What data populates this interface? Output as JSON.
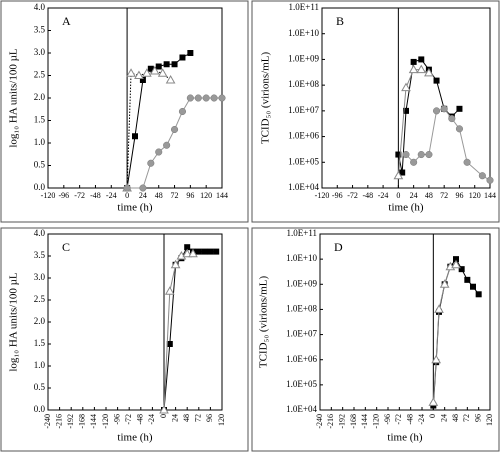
{
  "chart_data": [
    {
      "type": "line",
      "annotation": "A",
      "xlabel": "time (h)",
      "ylabel": "log₁₀ HA units/100 µL",
      "xlim": [
        -120,
        144
      ],
      "xticks": [
        -120,
        -96,
        -72,
        -48,
        -24,
        0,
        24,
        48,
        72,
        96,
        120,
        144
      ],
      "ylim": [
        0,
        4
      ],
      "yticks": [
        {
          "value": 0,
          "label": "0.0"
        },
        {
          "value": 0.5,
          "label": "0.5"
        },
        {
          "value": 1,
          "label": "1.0"
        },
        {
          "value": 1.5,
          "label": "1.5"
        },
        {
          "value": 2,
          "label": "2.0"
        },
        {
          "value": 2.5,
          "label": "2.5"
        },
        {
          "value": 3,
          "label": "3.0"
        },
        {
          "value": 3.5,
          "label": "3.5"
        },
        {
          "value": 4,
          "label": "4.0"
        }
      ],
      "series": [
        {
          "marker": "square",
          "color": "#000000",
          "x": [
            0,
            12,
            24,
            36,
            48,
            60,
            72,
            84,
            96
          ],
          "values": [
            0,
            1.15,
            2.4,
            2.65,
            2.7,
            2.75,
            2.75,
            2.9,
            3.0
          ]
        },
        {
          "marker": "triangle",
          "color": "#888888",
          "linestyle": "dotted",
          "x": [
            0,
            6,
            18,
            30,
            42,
            54,
            66
          ],
          "values": [
            0,
            2.55,
            2.5,
            2.55,
            2.6,
            2.55,
            2.4
          ]
        },
        {
          "marker": "circle",
          "color": "#999999",
          "x": [
            0,
            24,
            36,
            48,
            60,
            72,
            84,
            96,
            108,
            120,
            132,
            144
          ],
          "values": [
            0,
            0,
            0.55,
            0.8,
            0.95,
            1.3,
            1.7,
            2.0,
            2.0,
            2.0,
            2.0,
            2.0
          ]
        }
      ]
    },
    {
      "type": "line",
      "annotation": "B",
      "xlabel": "time (h)",
      "ylabel": "TCID₅₀ (virions/mL)",
      "yscale": "log",
      "xlim": [
        -120,
        144
      ],
      "xticks": [
        -120,
        -96,
        -72,
        -48,
        -24,
        0,
        24,
        48,
        72,
        96,
        120,
        144
      ],
      "ylim": [
        10000,
        100000000000
      ],
      "yticks": [
        {
          "value": 10000,
          "label": "1.0E+04"
        },
        {
          "value": 100000,
          "label": "1.0E+05"
        },
        {
          "value": 1000000,
          "label": "1.0E+06"
        },
        {
          "value": 10000000,
          "label": "1.0E+07"
        },
        {
          "value": 100000000,
          "label": "1.0E+08"
        },
        {
          "value": 1000000000,
          "label": "1.0E+09"
        },
        {
          "value": 10000000000,
          "label": "1.0E+10"
        },
        {
          "value": 100000000000,
          "label": "1.0E+11"
        }
      ],
      "series": [
        {
          "marker": "square",
          "color": "#000000",
          "x": [
            0,
            6,
            12,
            24,
            36,
            48,
            60,
            72,
            84,
            96
          ],
          "values": [
            200000,
            40000,
            10000000,
            800000000,
            1000000000,
            400000000,
            150000000,
            12000000,
            6000000,
            12000000
          ]
        },
        {
          "marker": "triangle",
          "color": "#888888",
          "x": [
            0,
            12,
            24,
            36,
            48
          ],
          "values": [
            30000,
            80000000,
            400000000,
            400000000,
            300000000
          ]
        },
        {
          "marker": "circle",
          "color": "#999999",
          "x": [
            12,
            24,
            36,
            48,
            60,
            72,
            84,
            96,
            108,
            132,
            144
          ],
          "values": [
            200000,
            100000,
            200000,
            200000,
            10000000,
            12000000,
            5000000,
            2000000,
            100000,
            30000,
            20000
          ]
        }
      ]
    },
    {
      "type": "line",
      "annotation": "C",
      "xlabel": "time (h)",
      "ylabel": "log₁₀ HA units/100 µL",
      "xlim": [
        -240,
        120
      ],
      "xticks": [
        -240,
        -216,
        -192,
        -168,
        -144,
        -120,
        -96,
        -72,
        -48,
        -24,
        0,
        24,
        48,
        72,
        96,
        120
      ],
      "ylim": [
        0,
        4
      ],
      "yticks": [
        {
          "value": 0,
          "label": "0.0"
        },
        {
          "value": 0.5,
          "label": "0.5"
        },
        {
          "value": 1,
          "label": "1.0"
        },
        {
          "value": 1.5,
          "label": "1.5"
        },
        {
          "value": 2,
          "label": "2.0"
        },
        {
          "value": 2.5,
          "label": "2.5"
        },
        {
          "value": 3,
          "label": "3.0"
        },
        {
          "value": 3.5,
          "label": "3.5"
        },
        {
          "value": 4,
          "label": "4.0"
        }
      ],
      "series": [
        {
          "marker": "square",
          "color": "#000000",
          "x": [
            0,
            12,
            24,
            36,
            48,
            60,
            72,
            84,
            96,
            108
          ],
          "values": [
            0,
            1.5,
            3.3,
            3.45,
            3.7,
            3.6,
            3.6,
            3.6,
            3.6,
            3.6
          ]
        },
        {
          "marker": "triangle",
          "color": "#888888",
          "x": [
            0,
            12,
            24,
            36,
            48,
            60
          ],
          "values": [
            0,
            2.7,
            3.3,
            3.5,
            3.55,
            3.55
          ]
        }
      ]
    },
    {
      "type": "line",
      "annotation": "D",
      "xlabel": "time (h)",
      "ylabel": "TCID₅₀ (virions/mL)",
      "yscale": "log",
      "xlim": [
        -240,
        120
      ],
      "xticks": [
        -240,
        -216,
        -192,
        -168,
        -144,
        -120,
        -96,
        -72,
        -48,
        -24,
        0,
        24,
        48,
        72,
        96,
        120
      ],
      "ylim": [
        10000,
        100000000000
      ],
      "yticks": [
        {
          "value": 10000,
          "label": "1.0E+04"
        },
        {
          "value": 100000,
          "label": "1.0E+05"
        },
        {
          "value": 1000000,
          "label": "1.0E+06"
        },
        {
          "value": 10000000,
          "label": "1.0E+07"
        },
        {
          "value": 100000000,
          "label": "1.0E+08"
        },
        {
          "value": 1000000000,
          "label": "1.0E+09"
        },
        {
          "value": 10000000000,
          "label": "1.0E+10"
        },
        {
          "value": 100000000000,
          "label": "1.0E+11"
        }
      ],
      "series": [
        {
          "marker": "square",
          "color": "#000000",
          "x": [
            0,
            6,
            12,
            24,
            36,
            48,
            60,
            72,
            84,
            96
          ],
          "values": [
            15000,
            800000,
            80000000,
            1000000000,
            5000000000,
            10000000000,
            4000000000,
            1500000000,
            800000000,
            400000000
          ]
        },
        {
          "marker": "triangle",
          "color": "#888888",
          "x": [
            0,
            6,
            12,
            24,
            36,
            48
          ],
          "values": [
            20000,
            1000000,
            100000000,
            1000000000,
            5000000000,
            6000000000
          ]
        }
      ]
    }
  ]
}
